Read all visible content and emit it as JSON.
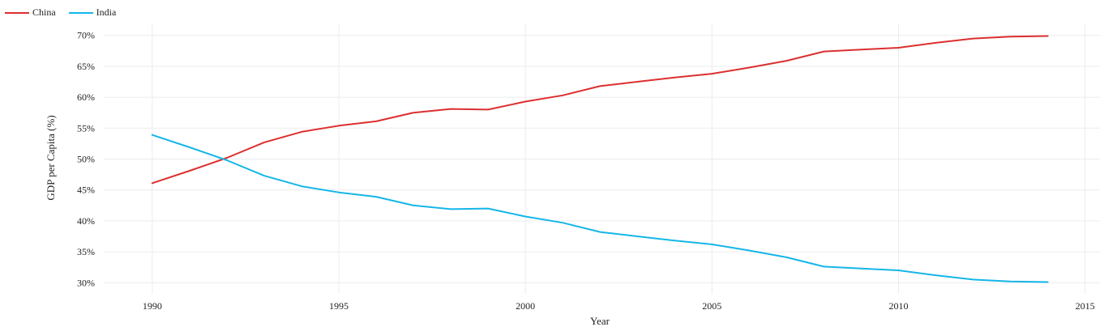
{
  "colors": {
    "china": "#dc2f2f",
    "india": "#15b6e8",
    "grid": "#ececec",
    "text": "#222222"
  },
  "chart_data": {
    "type": "line",
    "title": "",
    "xlabel": "Year",
    "ylabel": "GDP per Capita (%)",
    "legend_position": "top-left",
    "grid": true,
    "xlim": [
      1988.7,
      2015.4
    ],
    "ylim": [
      28.2,
      71.8
    ],
    "x_ticks": [
      1990,
      1995,
      2000,
      2005,
      2010,
      2015
    ],
    "x_tick_labels": [
      "1990",
      "1995",
      "2000",
      "2005",
      "2010",
      "2015"
    ],
    "y_ticks": [
      30,
      35,
      40,
      45,
      50,
      55,
      60,
      65,
      70
    ],
    "y_tick_labels": [
      "30%",
      "35%",
      "40%",
      "45%",
      "50%",
      "55%",
      "60%",
      "65%",
      "70%"
    ],
    "x": [
      1990,
      1991,
      1992,
      1993,
      1994,
      1995,
      1996,
      1997,
      1998,
      1999,
      2000,
      2001,
      2002,
      2003,
      2004,
      2005,
      2006,
      2007,
      2008,
      2009,
      2010,
      2011,
      2012,
      2013,
      2014
    ],
    "series": [
      {
        "name": "China",
        "color": "#dc2f2f",
        "values": [
          46.1,
          48.1,
          50.2,
          52.7,
          54.4,
          55.4,
          56.1,
          57.5,
          58.1,
          58.0,
          59.3,
          60.3,
          61.8,
          62.5,
          63.2,
          63.8,
          64.8,
          65.9,
          67.4,
          67.7,
          68.0,
          68.8,
          69.5,
          69.8,
          69.9
        ]
      },
      {
        "name": "India",
        "color": "#15b6e8",
        "values": [
          53.9,
          51.9,
          49.8,
          47.3,
          45.6,
          44.6,
          43.9,
          42.5,
          41.9,
          42.0,
          40.7,
          39.7,
          38.2,
          37.5,
          36.8,
          36.2,
          35.2,
          34.1,
          32.6,
          32.3,
          32.0,
          31.2,
          30.5,
          30.2,
          30.1
        ]
      }
    ]
  }
}
